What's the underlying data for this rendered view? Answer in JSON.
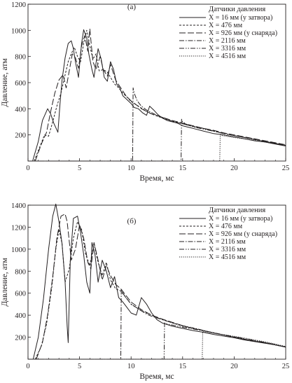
{
  "chart_data": [
    {
      "type": "line",
      "panel_label": "(а)",
      "xlabel": "Время, мс",
      "ylabel": "Давление, атм",
      "xlim": [
        0,
        25
      ],
      "ylim": [
        0,
        1200
      ],
      "xticks": [
        0,
        5,
        10,
        15,
        20,
        25
      ],
      "yticks": [
        200,
        400,
        600,
        800,
        1000,
        1200
      ],
      "grid": false,
      "legend_title": "Датчики давления",
      "legend_position": "top-right",
      "series": [
        {
          "name": "X = 16 мм (у затвора)",
          "style": "solid",
          "x": [
            0.45,
            1.0,
            1.4,
            1.9,
            2.2,
            2.5,
            2.9,
            3.1,
            3.3,
            3.6,
            3.9,
            4.2,
            4.4,
            4.6,
            4.9,
            5.2,
            5.4,
            5.7,
            5.9,
            6.2,
            6.4,
            6.8,
            7.1,
            7.4,
            7.7,
            8.0,
            8.3,
            8.6,
            8.9,
            9.2,
            9.6,
            10.0,
            10.3,
            10.7,
            11.1,
            11.5,
            11.8,
            12.2,
            12.6,
            13.0,
            13.5,
            14.0,
            14.5,
            15.0,
            15.5,
            16.0,
            17.0,
            18.0,
            19.0,
            20.0,
            21.0,
            22.0,
            23.0,
            24.0,
            25.0
          ],
          "y": [
            0,
            150,
            310,
            400,
            360,
            290,
            220,
            430,
            620,
            790,
            900,
            920,
            860,
            760,
            640,
            900,
            1005,
            940,
            820,
            700,
            640,
            860,
            780,
            640,
            610,
            760,
            700,
            590,
            560,
            500,
            470,
            440,
            410,
            400,
            370,
            350,
            420,
            390,
            355,
            330,
            310,
            300,
            290,
            270,
            260,
            250,
            230,
            210,
            200,
            185,
            170,
            155,
            145,
            130,
            115
          ]
        },
        {
          "name": "X = 476 мм",
          "style": "short-dash",
          "x": [
            0.6,
            1.2,
            1.6,
            2.0,
            2.4,
            2.8,
            3.2,
            3.6,
            3.9,
            4.2,
            4.5,
            4.8,
            5.1,
            5.4,
            5.7,
            6.0,
            6.3,
            6.6,
            6.9,
            7.3,
            7.7,
            8.0,
            8.4,
            8.8,
            9.2,
            9.6,
            10.0,
            10.5,
            11.0,
            11.5,
            12.0,
            13.0,
            14.0,
            15.0,
            16.0,
            17.0,
            18.0,
            19.0,
            20.0,
            21.0,
            22.0,
            23.0,
            24.0,
            25.0
          ],
          "y": [
            0,
            120,
            200,
            190,
            300,
            420,
            520,
            660,
            760,
            820,
            870,
            800,
            760,
            900,
            1000,
            880,
            780,
            820,
            690,
            700,
            680,
            640,
            590,
            560,
            520,
            490,
            455,
            430,
            405,
            380,
            360,
            330,
            305,
            285,
            265,
            250,
            230,
            210,
            195,
            180,
            165,
            150,
            135,
            120
          ]
        },
        {
          "name": "X = 926 мм (у снаряда)",
          "style": "long-dash",
          "x": [
            0.7,
            1.3,
            1.8,
            2.2,
            2.6,
            3.0,
            3.4,
            3.7,
            4.0,
            4.3,
            4.6,
            4.9,
            5.2,
            5.5,
            5.8,
            6.0,
            6.3,
            6.6,
            7.0,
            7.3,
            7.7,
            8.0,
            8.5,
            9.0,
            9.5,
            10.0,
            10.5,
            11.0,
            11.5,
            12.0,
            13.0,
            14.0,
            15.0,
            16.0,
            17.0,
            18.0,
            19.0,
            20.0,
            21.0,
            22.0,
            23.0,
            24.0,
            25.0
          ],
          "y": [
            0,
            130,
            220,
            380,
            520,
            620,
            660,
            560,
            690,
            820,
            790,
            710,
            880,
            960,
            840,
            1010,
            760,
            700,
            800,
            700,
            650,
            740,
            620,
            560,
            500,
            460,
            430,
            400,
            380,
            360,
            335,
            310,
            290,
            270,
            250,
            235,
            215,
            200,
            185,
            170,
            155,
            140,
            125
          ]
        },
        {
          "name": "X = 2116 мм",
          "style": "dash-dot",
          "x": [
            0,
            10.0,
            10.15,
            10.2,
            10.3,
            10.6,
            11.0,
            11.5,
            12.0,
            12.5,
            13.0,
            14.0,
            15.0,
            16.0,
            17.0,
            18.0,
            19.0,
            20.0,
            21.0,
            22.0,
            23.0,
            24.0,
            25.0
          ],
          "y": [
            0,
            0,
            0,
            560,
            520,
            460,
            420,
            390,
            370,
            350,
            335,
            305,
            285,
            265,
            250,
            230,
            210,
            195,
            180,
            165,
            150,
            135,
            120
          ]
        },
        {
          "name": "X = 3316 мм",
          "style": "dash-dot-dot",
          "x": [
            0,
            14.7,
            14.85,
            14.9,
            15.0,
            15.4,
            16.0,
            17.0,
            18.0,
            19.0,
            20.0,
            21.0,
            22.0,
            23.0,
            24.0,
            25.0
          ],
          "y": [
            0,
            0,
            0,
            320,
            300,
            280,
            262,
            245,
            228,
            210,
            195,
            180,
            165,
            150,
            135,
            120
          ]
        },
        {
          "name": "X = 4516 мм",
          "style": "dotted",
          "x": [
            0,
            18.5,
            18.6,
            18.65,
            18.8,
            19.2,
            20.0,
            21.0,
            22.0,
            23.0,
            24.0,
            25.0
          ],
          "y": [
            0,
            0,
            0,
            200,
            195,
            190,
            180,
            170,
            158,
            145,
            130,
            118
          ]
        }
      ]
    },
    {
      "type": "line",
      "panel_label": "(б)",
      "xlabel": "Время, мс",
      "ylabel": "Давление, атм",
      "xlim": [
        0,
        25
      ],
      "ylim": [
        0,
        1400
      ],
      "xticks": [
        0,
        5,
        10,
        15,
        20,
        25
      ],
      "yticks": [
        200,
        400,
        600,
        800,
        1000,
        1200,
        1400
      ],
      "grid": false,
      "legend_title": "Датчики давления",
      "legend_position": "top-right",
      "series": [
        {
          "name": "X = 16 мм (у затвора)",
          "style": "solid",
          "x": [
            0.5,
            1.0,
            1.5,
            2.0,
            2.4,
            2.7,
            3.0,
            3.3,
            3.6,
            3.8,
            3.9,
            4.1,
            4.4,
            4.8,
            5.1,
            5.4,
            5.7,
            6.0,
            6.2,
            6.5,
            6.8,
            7.2,
            7.6,
            8.0,
            8.4,
            8.8,
            9.2,
            9.6,
            10.0,
            10.5,
            11.0,
            11.5,
            12.0,
            12.5,
            13.0,
            14.0,
            15.0,
            16.0,
            17.0,
            18.0,
            19.0,
            20.0,
            21.0,
            22.0,
            23.0,
            24.0,
            25.0
          ],
          "y": [
            0,
            200,
            550,
            1000,
            1300,
            1410,
            1250,
            1050,
            700,
            300,
            150,
            900,
            1280,
            1300,
            1150,
            950,
            700,
            600,
            1060,
            950,
            700,
            900,
            800,
            650,
            750,
            560,
            520,
            470,
            420,
            400,
            560,
            500,
            420,
            360,
            330,
            300,
            280,
            260,
            245,
            225,
            210,
            195,
            175,
            160,
            145,
            130,
            110
          ]
        },
        {
          "name": "X = 476 мм",
          "style": "short-dash",
          "x": [
            0.7,
            1.3,
            1.8,
            2.3,
            2.7,
            3.0,
            3.3,
            3.6,
            4.0,
            4.4,
            4.8,
            5.2,
            5.6,
            6.0,
            6.4,
            6.8,
            7.2,
            7.6,
            8.0,
            8.5,
            9.0,
            9.5,
            10.0,
            11.0,
            12.0,
            13.0,
            14.0,
            15.0,
            16.0,
            17.0,
            18.0,
            19.0,
            20.0,
            21.0,
            22.0,
            23.0,
            24.0,
            25.0
          ],
          "y": [
            0,
            120,
            320,
            650,
            1000,
            1180,
            1050,
            700,
            820,
            1100,
            1250,
            1180,
            950,
            850,
            1050,
            880,
            760,
            880,
            720,
            640,
            620,
            560,
            500,
            440,
            400,
            360,
            330,
            300,
            280,
            260,
            240,
            220,
            200,
            180,
            165,
            150,
            130,
            110
          ]
        },
        {
          "name": "X = 926 мм (у снаряда)",
          "style": "long-dash",
          "x": [
            0.8,
            1.4,
            1.9,
            2.4,
            2.8,
            3.2,
            3.6,
            3.8,
            4.2,
            4.6,
            5.0,
            5.4,
            5.8,
            6.1,
            6.4,
            6.8,
            7.2,
            7.6,
            8.0,
            8.5,
            9.0,
            9.5,
            10.0,
            11.0,
            12.0,
            13.0,
            14.0,
            15.0,
            16.0,
            17.0,
            18.0,
            19.0,
            20.0,
            21.0,
            22.0,
            23.0,
            24.0,
            25.0
          ],
          "y": [
            0,
            150,
            400,
            750,
            1100,
            1300,
            1320,
            1250,
            900,
            1000,
            1220,
            1100,
            880,
            820,
            1060,
            900,
            720,
            850,
            760,
            680,
            640,
            580,
            520,
            450,
            400,
            365,
            335,
            305,
            280,
            260,
            240,
            220,
            200,
            180,
            165,
            150,
            130,
            110
          ]
        },
        {
          "name": "X = 2116 мм",
          "style": "dash-dot",
          "x": [
            0,
            8.9,
            9.0,
            9.05,
            9.2,
            9.5,
            10.0,
            10.5,
            11.0,
            11.5,
            12.0,
            13.0,
            14.0,
            15.0,
            16.0,
            17.0,
            18.0,
            19.0,
            20.0,
            21.0,
            22.0,
            23.0,
            24.0,
            25.0
          ],
          "y": [
            0,
            0,
            0,
            640,
            600,
            560,
            500,
            470,
            440,
            410,
            390,
            360,
            330,
            305,
            285,
            262,
            240,
            220,
            200,
            182,
            165,
            150,
            130,
            110
          ]
        },
        {
          "name": "X = 3316 мм",
          "style": "dash-dot-dot",
          "x": [
            0,
            13.1,
            13.2,
            13.25,
            13.5,
            14.0,
            15.0,
            16.0,
            17.0,
            18.0,
            19.0,
            20.0,
            21.0,
            22.0,
            23.0,
            24.0,
            25.0
          ],
          "y": [
            0,
            0,
            0,
            330,
            320,
            310,
            290,
            275,
            258,
            240,
            222,
            205,
            188,
            170,
            152,
            132,
            112
          ]
        },
        {
          "name": "X = 4516 мм",
          "style": "dotted",
          "x": [
            0,
            16.8,
            16.9,
            16.95,
            17.2,
            18.0,
            19.0,
            20.0,
            21.0,
            22.0,
            23.0,
            24.0,
            25.0
          ],
          "y": [
            0,
            0,
            0,
            250,
            245,
            235,
            222,
            208,
            192,
            175,
            158,
            138,
            115
          ]
        }
      ]
    }
  ]
}
